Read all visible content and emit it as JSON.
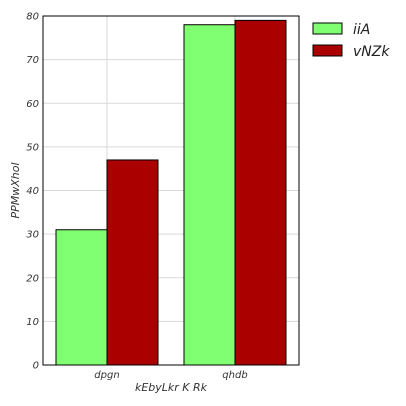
{
  "chart_data": {
    "type": "bar",
    "categories": [
      "dpgn",
      "qhdb"
    ],
    "series": [
      {
        "name": "iiA",
        "values": [
          31,
          78
        ],
        "color": "#80ff73"
      },
      {
        "name": "vNZk",
        "values": [
          47,
          79
        ],
        "color": "#aa0000"
      }
    ],
    "xlabel": "kEbyLkr K Rk",
    "ylabel": "PPMwXhol",
    "ylim": [
      0,
      80
    ],
    "yticks": [
      0,
      10,
      20,
      30,
      40,
      50,
      60,
      70,
      80
    ],
    "grid": true,
    "legend_position": "top-right, outside plot"
  }
}
